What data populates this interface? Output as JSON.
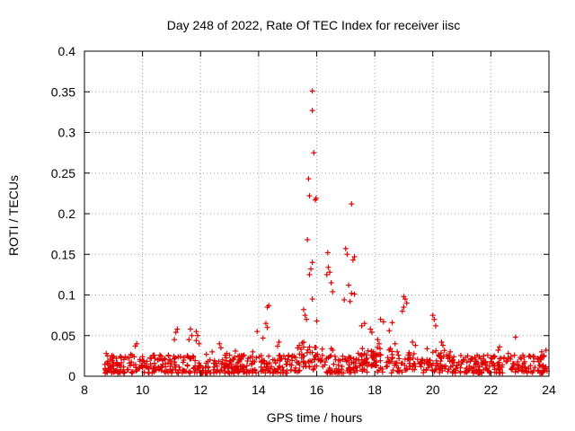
{
  "chart_data": {
    "type": "scatter",
    "title": "Day 248 of 2022, Rate Of TEC Index for receiver iisc",
    "xlabel": "GPS time / hours",
    "ylabel": "ROTI / TECUs",
    "xlim": [
      8,
      24
    ],
    "ylim": [
      0,
      0.4
    ],
    "xticks": [
      "8",
      "10",
      "12",
      "14",
      "16",
      "18",
      "20",
      "22",
      "24"
    ],
    "yticks": [
      "0",
      "0.05",
      "0.1",
      "0.15",
      "0.2",
      "0.25",
      "0.3",
      "0.35",
      "0.4"
    ],
    "grid": true,
    "marker": "+",
    "color": "#e00000",
    "series": [
      {
        "name": "ROTI",
        "points": [
          [
            15.85,
            0.351
          ],
          [
            15.85,
            0.327
          ],
          [
            15.9,
            0.275
          ],
          [
            15.72,
            0.243
          ],
          [
            15.75,
            0.222
          ],
          [
            15.98,
            0.219
          ],
          [
            15.95,
            0.217
          ],
          [
            17.2,
            0.212
          ],
          [
            15.68,
            0.168
          ],
          [
            17.0,
            0.157
          ],
          [
            17.05,
            0.15
          ],
          [
            16.38,
            0.152
          ],
          [
            17.3,
            0.147
          ],
          [
            17.25,
            0.143
          ],
          [
            15.85,
            0.14
          ],
          [
            16.4,
            0.134
          ],
          [
            16.35,
            0.125
          ],
          [
            16.45,
            0.128
          ],
          [
            15.8,
            0.132
          ],
          [
            15.75,
            0.125
          ],
          [
            16.5,
            0.115
          ],
          [
            17.1,
            0.112
          ],
          [
            16.55,
            0.104
          ],
          [
            17.2,
            0.102
          ],
          [
            17.3,
            0.101
          ],
          [
            16.95,
            0.094
          ],
          [
            17.15,
            0.092
          ],
          [
            15.85,
            0.095
          ],
          [
            19.0,
            0.098
          ],
          [
            19.05,
            0.095
          ],
          [
            19.1,
            0.09
          ],
          [
            19.0,
            0.085
          ],
          [
            18.95,
            0.08
          ],
          [
            14.35,
            0.087
          ],
          [
            14.3,
            0.085
          ],
          [
            15.55,
            0.082
          ],
          [
            15.6,
            0.075
          ],
          [
            15.65,
            0.07
          ],
          [
            16.0,
            0.068
          ],
          [
            14.25,
            0.065
          ],
          [
            14.3,
            0.06
          ],
          [
            20.0,
            0.075
          ],
          [
            20.05,
            0.07
          ],
          [
            20.1,
            0.062
          ],
          [
            18.2,
            0.07
          ],
          [
            18.3,
            0.067
          ],
          [
            17.65,
            0.065
          ],
          [
            17.55,
            0.062
          ],
          [
            18.6,
            0.066
          ],
          [
            17.85,
            0.058
          ],
          [
            17.9,
            0.054
          ],
          [
            18.5,
            0.056
          ],
          [
            11.2,
            0.058
          ],
          [
            11.15,
            0.054
          ],
          [
            11.65,
            0.058
          ],
          [
            11.7,
            0.05
          ],
          [
            11.85,
            0.055
          ],
          [
            11.9,
            0.05
          ],
          [
            13.95,
            0.055
          ],
          [
            14.15,
            0.047
          ],
          [
            11.1,
            0.045
          ],
          [
            11.6,
            0.045
          ],
          [
            11.85,
            0.044
          ],
          [
            11.95,
            0.04
          ],
          [
            9.8,
            0.04
          ],
          [
            9.75,
            0.037
          ],
          [
            12.65,
            0.04
          ],
          [
            12.7,
            0.035
          ],
          [
            14.7,
            0.042
          ],
          [
            14.65,
            0.037
          ],
          [
            15.4,
            0.038
          ],
          [
            15.5,
            0.041
          ],
          [
            16.5,
            0.034
          ],
          [
            16.55,
            0.032
          ],
          [
            18.1,
            0.045
          ],
          [
            18.15,
            0.04
          ],
          [
            18.7,
            0.04
          ],
          [
            19.3,
            0.042
          ],
          [
            19.4,
            0.038
          ],
          [
            20.3,
            0.042
          ],
          [
            20.35,
            0.038
          ],
          [
            20.6,
            0.03
          ],
          [
            22.85,
            0.048
          ],
          [
            23.75,
            0.03
          ],
          [
            22.3,
            0.036
          ],
          [
            22.25,
            0.032
          ],
          [
            23.9,
            0.032
          ],
          [
            21.2,
            0.025
          ],
          [
            21.35,
            0.022
          ],
          [
            21.6,
            0.024
          ],
          [
            22.6,
            0.028
          ],
          [
            23.1,
            0.026
          ],
          [
            23.5,
            0.024
          ],
          [
            8.75,
            0.028
          ],
          [
            8.8,
            0.025
          ],
          [
            9.1,
            0.022
          ],
          [
            9.4,
            0.024
          ],
          [
            9.6,
            0.027
          ],
          [
            10.0,
            0.024
          ],
          [
            10.3,
            0.022
          ],
          [
            10.6,
            0.026
          ],
          [
            10.9,
            0.025
          ],
          [
            12.2,
            0.027
          ],
          [
            12.4,
            0.03
          ],
          [
            12.9,
            0.028
          ],
          [
            13.2,
            0.031
          ],
          [
            13.5,
            0.026
          ],
          [
            13.8,
            0.03
          ]
        ]
      }
    ]
  }
}
